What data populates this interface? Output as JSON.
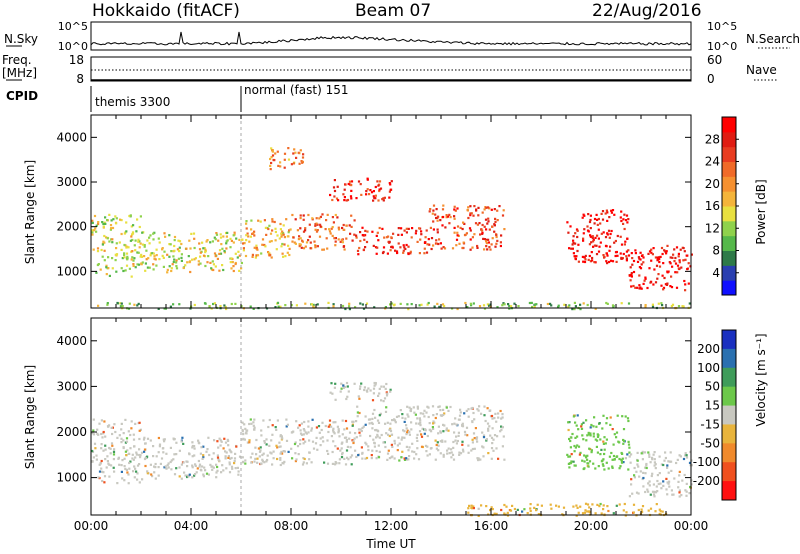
{
  "header": {
    "station": "Hokkaido (fitACF)",
    "beam": "Beam 07",
    "date": "22/Aug/2016"
  },
  "strip_labels": {
    "nsky": "N.Sky",
    "nsearch": "N.Search",
    "freq": "Freq.",
    "freq_unit": "[MHz]",
    "nave": "Nave",
    "cpid": "CPID"
  },
  "strip_ticks": {
    "noise_left": [
      "10^5",
      "10^0"
    ],
    "noise_right": [
      "10^5",
      "10^0"
    ],
    "freq_left": [
      "18",
      "8"
    ],
    "freq_right": [
      "60",
      "0"
    ]
  },
  "cpid_modes": [
    {
      "name": "themis 3300",
      "start_hour": 0
    },
    {
      "name": "normal (fast) 151",
      "start_hour": 6
    }
  ],
  "chart_data": [
    {
      "type": "heatmap",
      "parameter": "Power",
      "ylabel": "Slant Range [km]",
      "xlabel": "Time UT",
      "xlim_hours": [
        0,
        24
      ],
      "ylim_km": [
        180,
        4500
      ],
      "x_ticks": [
        "00:00",
        "04:00",
        "08:00",
        "12:00",
        "16:00",
        "20:00",
        "00:00"
      ],
      "y_ticks": [
        1000,
        2000,
        3000,
        4000
      ],
      "colorbar": {
        "label": "Power [dB]",
        "ticks": [
          "4",
          "8",
          "12",
          "16",
          "20",
          "24",
          "28"
        ],
        "colors": [
          "#1010ff",
          "#2a3fb0",
          "#2e7a48",
          "#55b84a",
          "#8fd24c",
          "#e8e040",
          "#f4b43a",
          "#f59030",
          "#f06a28",
          "#e83c20",
          "#e01c12",
          "#ff0000"
        ]
      },
      "echo_bands": [
        {
          "hours": [
            0.0,
            2.0
          ],
          "range_km": [
            900,
            2300
          ],
          "value": 14
        },
        {
          "hours": [
            2.0,
            6.0
          ],
          "range_km": [
            1000,
            1900
          ],
          "value": 15
        },
        {
          "hours": [
            6.0,
            8.0
          ],
          "range_km": [
            1300,
            2200
          ],
          "value": 18
        },
        {
          "hours": [
            8.0,
            10.5
          ],
          "range_km": [
            1500,
            2300
          ],
          "value": 22
        },
        {
          "hours": [
            10.5,
            13.5
          ],
          "range_km": [
            1400,
            2000
          ],
          "value": 26
        },
        {
          "hours": [
            13.5,
            16.5
          ],
          "range_km": [
            1500,
            2500
          ],
          "value": 24
        },
        {
          "hours": [
            9.5,
            12.0
          ],
          "range_km": [
            2600,
            3100
          ],
          "value": 26
        },
        {
          "hours": [
            19.0,
            21.5
          ],
          "range_km": [
            1200,
            2400
          ],
          "value": 28
        },
        {
          "hours": [
            21.5,
            24.0
          ],
          "range_km": [
            600,
            1600
          ],
          "value": 28
        },
        {
          "hours": [
            7.0,
            8.5
          ],
          "range_km": [
            3300,
            3800
          ],
          "value": 20
        },
        {
          "hours": [
            0.0,
            24.0
          ],
          "range_km": [
            180,
            320
          ],
          "value": 12
        }
      ]
    },
    {
      "type": "heatmap",
      "parameter": "Velocity",
      "ylabel": "Slant Range [km]",
      "xlabel": "Time UT",
      "xlim_hours": [
        0,
        24
      ],
      "ylim_km": [
        180,
        4500
      ],
      "x_ticks": [
        "00:00",
        "04:00",
        "08:00",
        "12:00",
        "16:00",
        "20:00",
        "00:00"
      ],
      "y_ticks": [
        1000,
        2000,
        3000,
        4000
      ],
      "colorbar": {
        "label": "Velocity [m s⁻¹]",
        "ticks": [
          "200",
          "100",
          "50",
          "15",
          "-15",
          "-50",
          "-100",
          "-200"
        ],
        "colors": [
          "#1a30c0",
          "#2a70b0",
          "#3f9c5a",
          "#6cc84a",
          "#c8c8c0",
          "#e8b43c",
          "#f08a2c",
          "#f0501e",
          "#ff1010"
        ]
      },
      "echo_bands": [
        {
          "hours": [
            0.0,
            2.0
          ],
          "range_km": [
            900,
            2300
          ],
          "value": 5
        },
        {
          "hours": [
            2.0,
            6.0
          ],
          "range_km": [
            1000,
            1900
          ],
          "value": 0
        },
        {
          "hours": [
            6.0,
            10.5
          ],
          "range_km": [
            1300,
            2300
          ],
          "value": 0
        },
        {
          "hours": [
            10.5,
            16.5
          ],
          "range_km": [
            1400,
            2600
          ],
          "value": -5
        },
        {
          "hours": [
            9.5,
            12.0
          ],
          "range_km": [
            2700,
            3100
          ],
          "value": 0
        },
        {
          "hours": [
            19.0,
            21.5
          ],
          "range_km": [
            1200,
            2400
          ],
          "value": 30
        },
        {
          "hours": [
            21.5,
            24.0
          ],
          "range_km": [
            600,
            1600
          ],
          "value": 0
        },
        {
          "hours": [
            15.0,
            23.0
          ],
          "range_km": [
            180,
            450
          ],
          "value": -30
        }
      ]
    }
  ]
}
